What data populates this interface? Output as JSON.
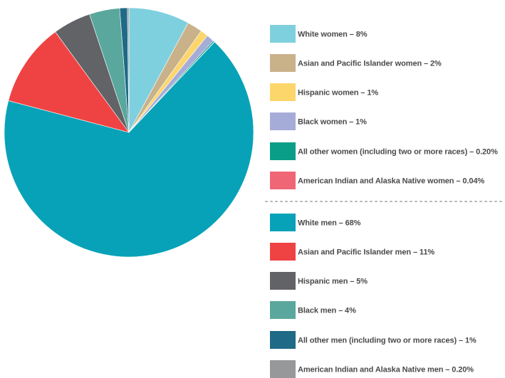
{
  "chart_data": {
    "type": "pie",
    "slices": [
      {
        "label": "White women – 8%",
        "value": 8,
        "color": "#7fd0df"
      },
      {
        "label": "Asian and Pacific Islander women – 2%",
        "value": 2,
        "color": "#c9b28a"
      },
      {
        "label": "Hispanic women – 1%",
        "value": 1,
        "color": "#fcd56b"
      },
      {
        "label": "Black women – 1%",
        "value": 1,
        "color": "#a6acd8"
      },
      {
        "label": "All other women (including two or more races) – 0.20%",
        "value": 0.2,
        "color": "#0a9e88"
      },
      {
        "label": "American Indian and Alaska Native women – 0.04%",
        "value": 0.04,
        "color": "#ef6677"
      },
      {
        "label": "White men – 68%",
        "value": 68,
        "color": "#07a2b8"
      },
      {
        "label": "Asian and Pacific Islander men – 11%",
        "value": 11,
        "color": "#ef4343"
      },
      {
        "label": "Hispanic men – 5%",
        "value": 5,
        "color": "#626367"
      },
      {
        "label": "Black men – 4%",
        "value": 4,
        "color": "#5aa79d"
      },
      {
        "label": "All other men (including two or more races) – 1%",
        "value": 1,
        "color": "#1f6a86"
      },
      {
        "label": "American Indian and Alaska Native men – 0.20%",
        "value": 0.2,
        "color": "#97989a"
      }
    ],
    "legend_position": "right",
    "legend_groups": [
      "women",
      "men"
    ]
  }
}
